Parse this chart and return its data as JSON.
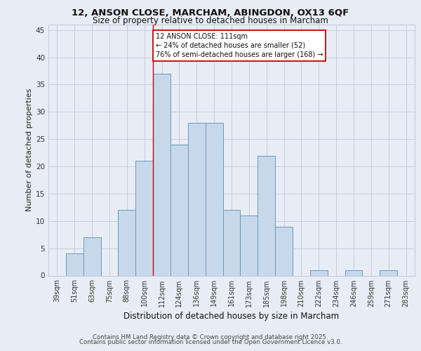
{
  "title_line1": "12, ANSON CLOSE, MARCHAM, ABINGDON, OX13 6QF",
  "title_line2": "Size of property relative to detached houses in Marcham",
  "xlabel": "Distribution of detached houses by size in Marcham",
  "ylabel": "Number of detached properties",
  "footer_line1": "Contains HM Land Registry data © Crown copyright and database right 2025.",
  "footer_line2": "Contains public sector information licensed under the Open Government Licence v3.0.",
  "bin_labels": [
    "39sqm",
    "51sqm",
    "63sqm",
    "75sqm",
    "88sqm",
    "100sqm",
    "112sqm",
    "124sqm",
    "136sqm",
    "149sqm",
    "161sqm",
    "173sqm",
    "185sqm",
    "198sqm",
    "210sqm",
    "222sqm",
    "234sqm",
    "246sqm",
    "259sqm",
    "271sqm",
    "283sqm"
  ],
  "bar_values": [
    0,
    4,
    7,
    0,
    12,
    21,
    37,
    24,
    28,
    28,
    12,
    11,
    22,
    9,
    0,
    1,
    0,
    1,
    0,
    1,
    0
  ],
  "bar_color": "#c8d8eb",
  "bar_edge_color": "#6699bb",
  "annotation_text": "12 ANSON CLOSE: 111sqm\n← 24% of detached houses are smaller (52)\n76% of semi-detached houses are larger (168) →",
  "ylim": [
    0,
    46
  ],
  "yticks": [
    0,
    5,
    10,
    15,
    20,
    25,
    30,
    35,
    40,
    45
  ],
  "bg_color": "#e8ecf4",
  "plot_bg_color": "#e8edf5",
  "grid_color": "#c5ccd8"
}
